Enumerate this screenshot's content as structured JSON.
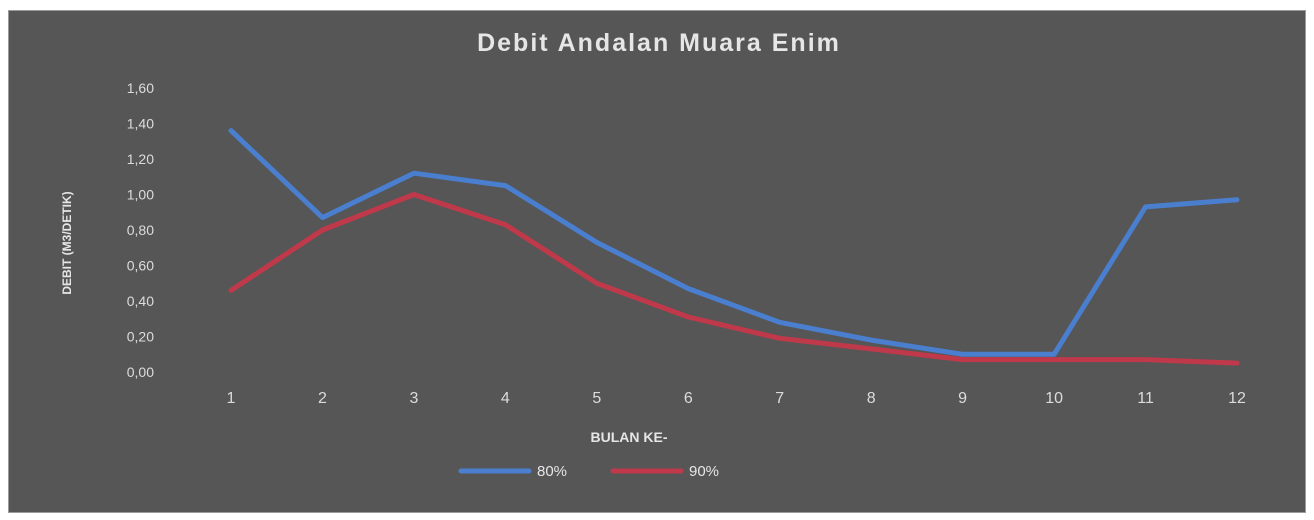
{
  "chart_data": {
    "type": "line",
    "title": "Debit Andalan Muara Enim",
    "xlabel": "BULAN KE-",
    "ylabel": "DEBIT (M3/DETIK)",
    "x": [
      "1",
      "2",
      "3",
      "4",
      "5",
      "6",
      "7",
      "8",
      "9",
      "10",
      "11",
      "12"
    ],
    "y_ticks": [
      "0,00",
      "0,20",
      "0,40",
      "0,60",
      "0,80",
      "1,00",
      "1,20",
      "1,40",
      "1,60"
    ],
    "ylim": [
      0,
      1.6
    ],
    "grid": false,
    "legend_position": "bottom",
    "series": [
      {
        "name": "80%",
        "color": "#4a7fd0",
        "values": [
          1.36,
          0.87,
          1.12,
          1.05,
          0.73,
          0.47,
          0.28,
          0.18,
          0.1,
          0.1,
          0.93,
          0.97
        ]
      },
      {
        "name": "90%",
        "color": "#c0394b",
        "values": [
          0.46,
          0.8,
          1.0,
          0.83,
          0.5,
          0.31,
          0.19,
          0.13,
          0.07,
          0.07,
          0.07,
          0.05
        ]
      }
    ]
  }
}
